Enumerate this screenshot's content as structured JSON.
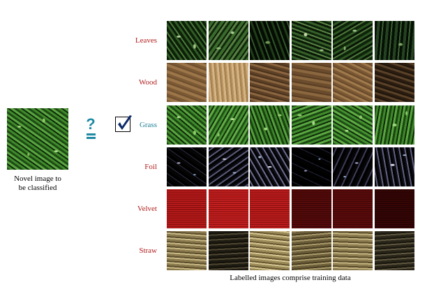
{
  "novel_image": {
    "caption_line1": "Novel image to",
    "caption_line2": "be classified"
  },
  "question_mark": "?",
  "rows": [
    {
      "label": "Leaves",
      "selected": false
    },
    {
      "label": "Wood",
      "selected": false
    },
    {
      "label": "Grass",
      "selected": true
    },
    {
      "label": "Foil",
      "selected": false
    },
    {
      "label": "Velvet",
      "selected": false
    },
    {
      "label": "Straw",
      "selected": false
    }
  ],
  "grid_caption": "Labelled images comprise training data",
  "colors": {
    "label_text": "#b01c1c",
    "selected_label_text": "#1e7f96",
    "accent": "#1e8aa3",
    "checkmark": "#0b2a6b"
  }
}
